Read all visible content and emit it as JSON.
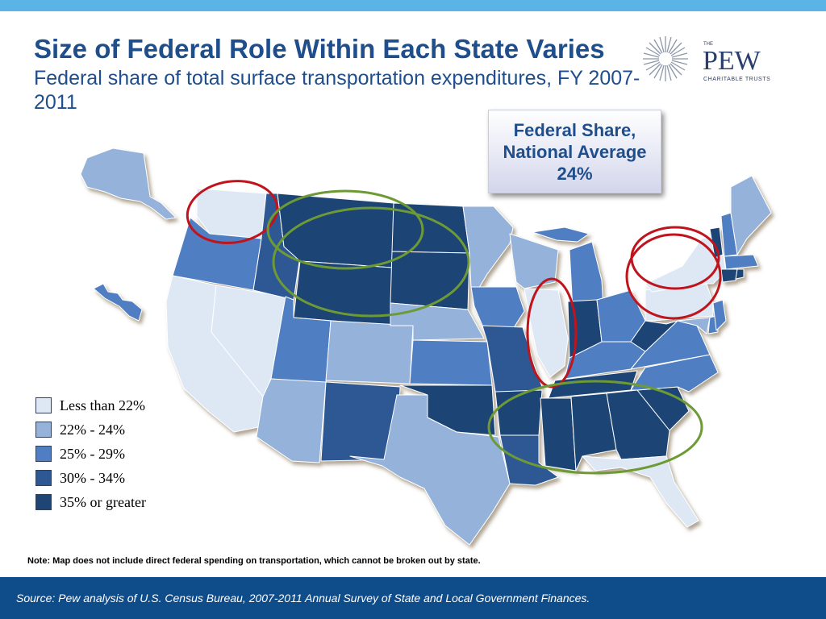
{
  "header": {
    "title": "Size of Federal Role Within Each State Varies",
    "subtitle": "Federal share of total surface transportation expenditures, FY 2007-2011"
  },
  "logo": {
    "small_text": "THE",
    "name": "PEW",
    "tagline": "CHARITABLE TRUSTS"
  },
  "callout": {
    "line1": "Federal Share,",
    "line2": "National Average",
    "value": "24%"
  },
  "legend": [
    {
      "label": "Less than 22%",
      "color": "#dde8f4"
    },
    {
      "label": "22% - 24%",
      "color": "#94b2da"
    },
    {
      "label": "25% - 29%",
      "color": "#4f7ec3"
    },
    {
      "label": "30% - 34%",
      "color": "#2d5893"
    },
    {
      "label": "35% or greater",
      "color": "#1f4575"
    }
  ],
  "highlight_colors": {
    "red": "#c0141c",
    "green": "#6e9a35"
  },
  "note": "Note: Map does not include direct federal spending on transportation, which cannot be broken out by state.",
  "source": "Source: Pew analysis of U.S. Census Bureau, 2007-2011 Annual Survey of State and Local Government Finances."
}
